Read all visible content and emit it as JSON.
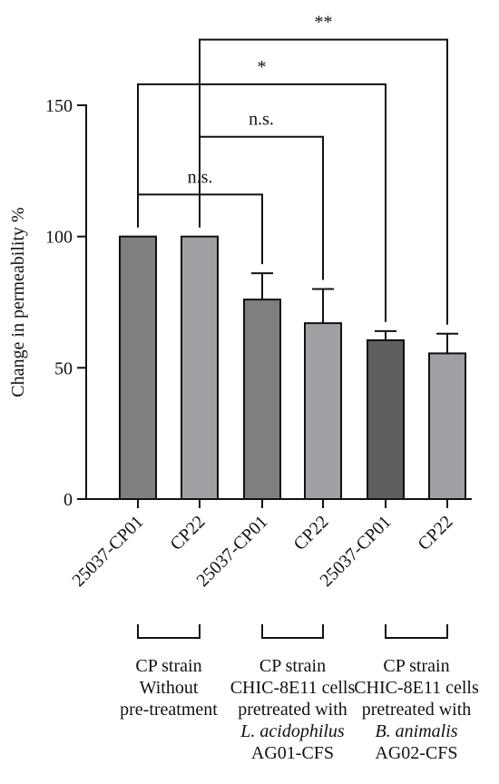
{
  "chart_data": {
    "type": "bar",
    "ylabel": "Change in permeability %",
    "ylim": [
      0,
      150
    ],
    "yticks": [
      0,
      50,
      100,
      150
    ],
    "categories": [
      "25037-CP01",
      "CP22",
      "25037-CP01",
      "CP22",
      "25037-CP01",
      "CP22"
    ],
    "values": [
      100,
      100,
      76,
      67,
      60.5,
      55.5
    ],
    "errors": [
      0,
      0,
      10,
      13,
      3.5,
      7.5
    ],
    "bar_colors": [
      "#7f7f7f",
      "#a0a0a4",
      "#7f7f7f",
      "#a0a0a4",
      "#5f5f5f",
      "#a0a0a4"
    ],
    "groups": [
      {
        "bars": [
          0,
          1
        ],
        "label_lines": [
          {
            "text": "CP strain"
          },
          {
            "text": "Without"
          },
          {
            "text": "pre-treatment"
          }
        ]
      },
      {
        "bars": [
          2,
          3
        ],
        "label_lines": [
          {
            "text": "CP strain"
          },
          {
            "text": "CHIC-8E11 cells"
          },
          {
            "text": "pretreated with"
          },
          {
            "text": "L. acidophilus",
            "italic": true
          },
          {
            "text": "AG01-CFS"
          }
        ]
      },
      {
        "bars": [
          4,
          5
        ],
        "label_lines": [
          {
            "text": "CP strain"
          },
          {
            "text": "CHIC-8E11 cells"
          },
          {
            "text": "pretreated with"
          },
          {
            "text": "B. animalis",
            "italic": true
          },
          {
            "text": "AG02-CFS"
          }
        ]
      }
    ],
    "comparisons": [
      {
        "from": 0,
        "to": 2,
        "y": 116,
        "label": "n.s."
      },
      {
        "from": 1,
        "to": 3,
        "y": 138,
        "label": "n.s."
      },
      {
        "from": 0,
        "to": 4,
        "y": 158,
        "label": "*"
      },
      {
        "from": 1,
        "to": 5,
        "y": 175,
        "label": "**"
      }
    ]
  }
}
